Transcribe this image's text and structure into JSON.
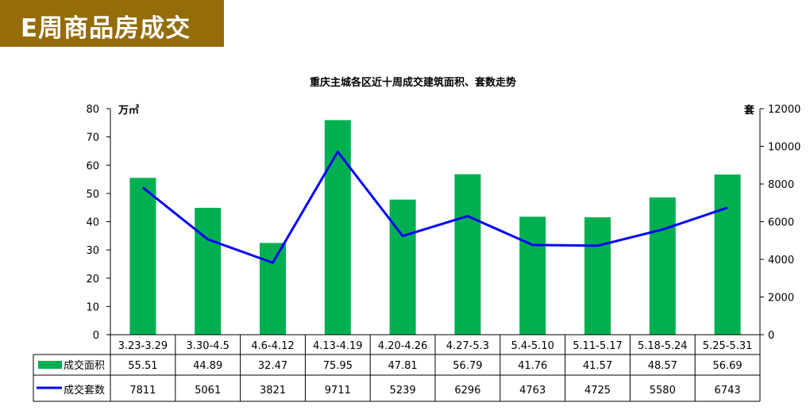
{
  "banner": {
    "title": "E周商品房成交"
  },
  "chart_data": {
    "type": "bar",
    "title": "重庆主城各区近十周成交建筑面积、套数走势",
    "categories": [
      "3.23-3.29",
      "3.30-4.5",
      "4.6-4.12",
      "4.13-4.19",
      "4.20-4.26",
      "4.27-5.3",
      "5.4-5.10",
      "5.11-5.17",
      "5.18-5.24",
      "5.25-5.31"
    ],
    "y_left": {
      "label": "万㎡",
      "range": [
        0,
        80
      ],
      "ticks": [
        0,
        10,
        20,
        30,
        40,
        50,
        60,
        70,
        80
      ]
    },
    "y_right": {
      "label": "套",
      "range": [
        0,
        12000
      ],
      "ticks": [
        0,
        2000,
        4000,
        6000,
        8000,
        10000,
        12000
      ]
    },
    "series": [
      {
        "name": "成交面积",
        "type": "bar",
        "axis": "left",
        "color": "#00b050",
        "values": [
          55.51,
          44.89,
          32.47,
          75.95,
          47.81,
          56.79,
          41.76,
          41.57,
          48.57,
          56.69
        ]
      },
      {
        "name": "成交套数",
        "type": "line",
        "axis": "right",
        "color": "#0000ff",
        "values": [
          7811,
          5061,
          3821,
          9711,
          5239,
          6296,
          4763,
          4725,
          5580,
          6743
        ]
      }
    ],
    "data_table": true,
    "grid": false,
    "legend": "data-table"
  }
}
